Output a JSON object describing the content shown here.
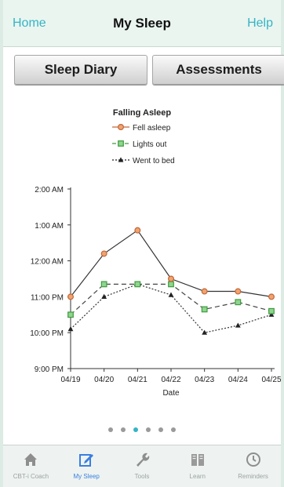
{
  "nav": {
    "left": "Home",
    "title": "My Sleep",
    "right": "Help"
  },
  "segments": {
    "left": "Sleep Diary",
    "right": "Assessments"
  },
  "chart_data": {
    "type": "line",
    "title": "Falling Asleep",
    "xlabel": "Date",
    "ylabel": "",
    "categories": [
      "04/19",
      "04/20",
      "04/21",
      "04/22",
      "04/23",
      "04/24",
      "04/25"
    ],
    "y_ticks": [
      "9:00 PM",
      "10:00 PM",
      "11:00 PM",
      "12:00 AM",
      "1:00 AM",
      "2:00 AM"
    ],
    "y_unit": "hours after 9:00 PM",
    "ylim": [
      0,
      5
    ],
    "legend_position": "top",
    "grid": false,
    "series": [
      {
        "name": "Fell asleep",
        "marker": "circle",
        "color": "#c0673a",
        "line": "solid",
        "values": [
          2.0,
          3.2,
          3.85,
          2.5,
          2.15,
          2.15,
          2.0
        ]
      },
      {
        "name": "Lights out",
        "marker": "square",
        "color": "#3e9c3e",
        "line": "dashed",
        "values": [
          1.5,
          2.35,
          2.35,
          2.35,
          1.65,
          1.85,
          1.6
        ]
      },
      {
        "name": "Went to bed",
        "marker": "triangle",
        "color": "#222222",
        "line": "dotted",
        "values": [
          1.1,
          2.0,
          2.35,
          2.05,
          1.0,
          1.2,
          1.5
        ]
      }
    ]
  },
  "page_dots": {
    "count": 6,
    "active": 2
  },
  "tabs": [
    {
      "label": "CBT-i Coach",
      "icon": "home-icon",
      "active": false
    },
    {
      "label": "My Sleep",
      "icon": "edit-icon",
      "active": true
    },
    {
      "label": "Tools",
      "icon": "wrench-icon",
      "active": false
    },
    {
      "label": "Learn",
      "icon": "book-icon",
      "active": false
    },
    {
      "label": "Reminders",
      "icon": "clock-icon",
      "active": false
    }
  ]
}
